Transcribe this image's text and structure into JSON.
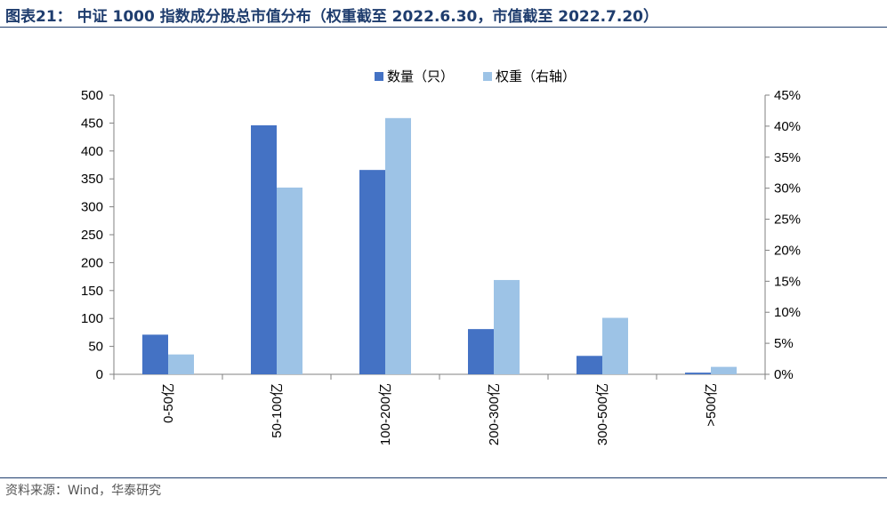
{
  "title": "图表21： 中证 1000 指数成分股总市值分布（权重截至 2022.6.30，市值截至 2022.7.20）",
  "source": "资料来源：Wind，华泰研究",
  "colors": {
    "series_count": "#4472C4",
    "series_weight": "#9DC3E6",
    "rule": "#1f3d6e"
  },
  "chart_data": {
    "type": "bar",
    "categories": [
      "0-50亿",
      "50-100亿",
      "100-200亿",
      "200-300亿",
      "300-500亿",
      ">500亿"
    ],
    "series": [
      {
        "name": "数量（只）",
        "axis": "left",
        "values": [
          71,
          446,
          366,
          81,
          33,
          3
        ]
      },
      {
        "name": "权重（右轴）",
        "axis": "right",
        "values": [
          3.2,
          30.1,
          41.3,
          15.2,
          9.1,
          1.2
        ]
      }
    ],
    "y_left": {
      "min": 0,
      "max": 500,
      "step": 50,
      "ticks": [
        "0",
        "50",
        "100",
        "150",
        "200",
        "250",
        "300",
        "350",
        "400",
        "450",
        "500"
      ]
    },
    "y_right": {
      "min": 0,
      "max": 45,
      "step": 5,
      "ticks": [
        "0%",
        "5%",
        "10%",
        "15%",
        "20%",
        "25%",
        "30%",
        "35%",
        "40%",
        "45%"
      ]
    },
    "grid": false,
    "legend_position": "top-center"
  }
}
